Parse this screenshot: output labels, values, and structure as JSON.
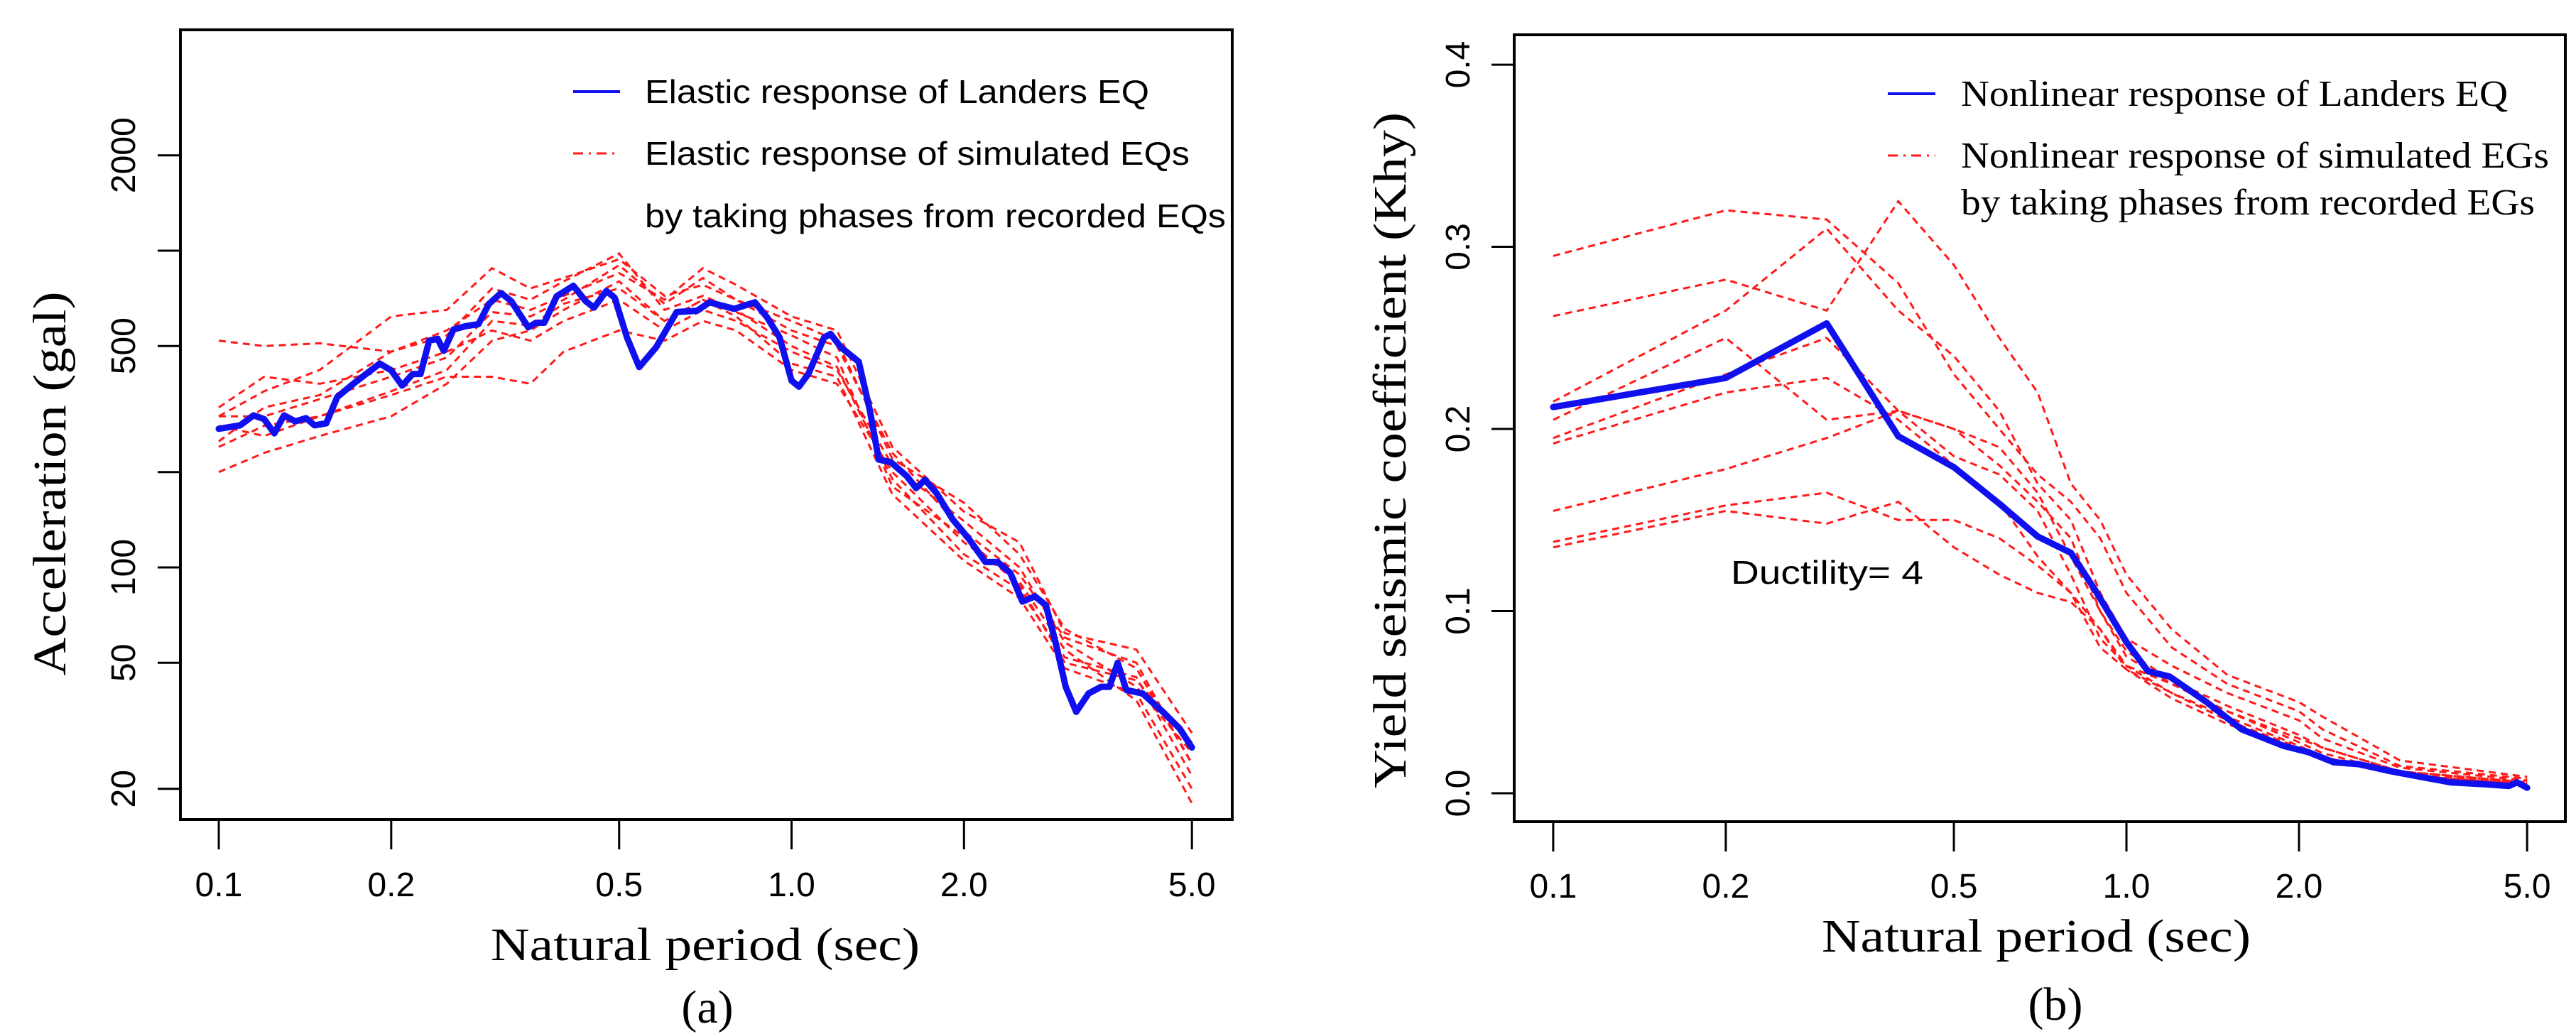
{
  "colors": {
    "landers": "#1010ee",
    "simulated": "#ff1a1a",
    "axis": "#000000"
  },
  "chart_data": [
    {
      "type": "line",
      "panel_label": "(a)",
      "xlabel": "Natural period (sec)",
      "ylabel": "Acceleration (gal)",
      "xscale": "log",
      "yscale": "log",
      "xlim": [
        0.0857,
        5.88
      ],
      "ylim": [
        16,
        4980
      ],
      "x_ticks": [
        0.1,
        0.2,
        0.5,
        1.0,
        2.0,
        5.0
      ],
      "x_tick_labels": [
        "0.1",
        "0.2",
        "0.5",
        "1.0",
        "2.0",
        "5.0"
      ],
      "y_ticks": [
        20,
        50,
        100,
        200,
        500,
        1000,
        2000
      ],
      "y_tick_labels": [
        "20",
        "50",
        "100",
        "",
        "500",
        "",
        "2000"
      ],
      "legend_position": "top-right",
      "legend": [
        "Elastic response of Landers EQ",
        "Elastic response of simulated EQs",
        "by taking phases from recorded EQs"
      ],
      "annotation": "",
      "main_series": {
        "name": "Elastic response of Landers EQ",
        "points": [
          [
            0.1,
            274
          ],
          [
            0.109,
            281
          ],
          [
            0.115,
            302
          ],
          [
            0.12,
            294
          ],
          [
            0.125,
            265
          ],
          [
            0.13,
            302
          ],
          [
            0.136,
            289
          ],
          [
            0.142,
            296
          ],
          [
            0.147,
            281
          ],
          [
            0.154,
            285
          ],
          [
            0.161,
            345
          ],
          [
            0.173,
            384
          ],
          [
            0.191,
            440
          ],
          [
            0.2,
            419
          ],
          [
            0.209,
            375
          ],
          [
            0.218,
            408
          ],
          [
            0.225,
            408
          ],
          [
            0.233,
            520
          ],
          [
            0.241,
            527
          ],
          [
            0.247,
            483
          ],
          [
            0.257,
            564
          ],
          [
            0.27,
            578
          ],
          [
            0.284,
            586
          ],
          [
            0.296,
            678
          ],
          [
            0.311,
            735
          ],
          [
            0.324,
            693
          ],
          [
            0.347,
            573
          ],
          [
            0.358,
            592
          ],
          [
            0.37,
            592
          ],
          [
            0.389,
            718
          ],
          [
            0.416,
            775
          ],
          [
            0.437,
            693
          ],
          [
            0.452,
            661
          ],
          [
            0.475,
            746
          ],
          [
            0.491,
            711
          ],
          [
            0.516,
            532
          ],
          [
            0.542,
            429
          ],
          [
            0.58,
            495
          ],
          [
            0.63,
            640
          ],
          [
            0.684,
            646
          ],
          [
            0.719,
            687
          ],
          [
            0.794,
            655
          ],
          [
            0.863,
            687
          ],
          [
            0.907,
            615
          ],
          [
            0.953,
            532
          ],
          [
            1.0,
            389
          ],
          [
            1.03,
            372
          ],
          [
            1.07,
            408
          ],
          [
            1.14,
            532
          ],
          [
            1.17,
            546
          ],
          [
            1.22,
            495
          ],
          [
            1.31,
            446
          ],
          [
            1.37,
            313
          ],
          [
            1.42,
            219
          ],
          [
            1.49,
            215
          ],
          [
            1.59,
            194
          ],
          [
            1.65,
            178
          ],
          [
            1.71,
            189
          ],
          [
            1.79,
            172
          ],
          [
            1.91,
            142
          ],
          [
            2.04,
            123
          ],
          [
            2.18,
            104
          ],
          [
            2.29,
            104
          ],
          [
            2.41,
            96
          ],
          [
            2.53,
            78
          ],
          [
            2.66,
            81
          ],
          [
            2.78,
            76
          ],
          [
            2.89,
            58
          ],
          [
            3.01,
            42
          ],
          [
            3.14,
            35
          ],
          [
            3.3,
            40
          ],
          [
            3.47,
            42
          ],
          [
            3.59,
            42
          ],
          [
            3.71,
            50
          ],
          [
            3.84,
            41
          ],
          [
            4.1,
            40
          ],
          [
            4.45,
            35
          ],
          [
            4.76,
            31
          ],
          [
            5.0,
            27
          ]
        ]
      },
      "sim_x": [
        0.1,
        0.12,
        0.15,
        0.2,
        0.25,
        0.3,
        0.35,
        0.4,
        0.5,
        0.6,
        0.7,
        0.8,
        1.0,
        1.2,
        1.5,
        2.0,
        2.5,
        3.0,
        4.0,
        5.0
      ],
      "sim_series": [
        [
          520,
          500,
          510,
          480,
          560,
          700,
          650,
          720,
          850,
          700,
          880,
          780,
          620,
          560,
          240,
          150,
          120,
          62,
          55,
          30
        ],
        [
          300,
          360,
          420,
          620,
          650,
          880,
          760,
          820,
          940,
          720,
          780,
          700,
          560,
          500,
          230,
          130,
          95,
          60,
          50,
          24
        ],
        [
          250,
          320,
          350,
          480,
          540,
          760,
          700,
          800,
          980,
          650,
          720,
          650,
          500,
          430,
          190,
          110,
          85,
          52,
          45,
          22
        ],
        [
          200,
          230,
          260,
          300,
          380,
          520,
          560,
          650,
          800,
          600,
          700,
          620,
          440,
          400,
          170,
          105,
          80,
          48,
          40,
          20
        ],
        [
          280,
          260,
          300,
          350,
          400,
          400,
          380,
          480,
          560,
          520,
          600,
          560,
          420,
          380,
          200,
          120,
          90,
          55,
          38,
          18
        ],
        [
          320,
          400,
          380,
          420,
          480,
          560,
          520,
          600,
          700,
          560,
          650,
          600,
          480,
          420,
          210,
          140,
          100,
          58,
          42,
          26
        ],
        [
          240,
          280,
          300,
          360,
          420,
          600,
          580,
          680,
          760,
          600,
          700,
          640,
          540,
          460,
          180,
          125,
          88,
          50,
          44,
          28
        ],
        [
          300,
          300,
          340,
          400,
          460,
          640,
          620,
          700,
          900,
          680,
          820,
          700,
          600,
          520,
          220,
          160,
          110,
          64,
          48,
          24
        ]
      ]
    },
    {
      "type": "line",
      "panel_label": "(b)",
      "xlabel": "Natural period (sec)",
      "ylabel": "Yield seismic coefficient (Khy)",
      "xscale": "log",
      "yscale": "linear",
      "xlim": [
        0.0855,
        5.83
      ],
      "ylim": [
        -0.0156,
        0.4164
      ],
      "x_ticks": [
        0.1,
        0.2,
        0.5,
        1.0,
        2.0,
        5.0
      ],
      "x_tick_labels": [
        "0.1",
        "0.2",
        "0.5",
        "1.0",
        "2.0",
        "5.0"
      ],
      "y_ticks": [
        0.0,
        0.1,
        0.2,
        0.3,
        0.4
      ],
      "y_tick_labels": [
        "0.0",
        "0.1",
        "0.2",
        "0.3",
        "0.4"
      ],
      "legend_position": "top-right",
      "legend": [
        "Nonlinear response of Landers EQ",
        "Nonlinear response of simulated EGs",
        "by taking phases from recorded EGs"
      ],
      "annotation": "Ductility= 4",
      "main_series": {
        "name": "Nonlinear response of Landers EQ",
        "points": [
          [
            0.1,
            0.212
          ],
          [
            0.2,
            0.228
          ],
          [
            0.3,
            0.258
          ],
          [
            0.4,
            0.196
          ],
          [
            0.5,
            0.179
          ],
          [
            0.6,
            0.159
          ],
          [
            0.7,
            0.141
          ],
          [
            0.8,
            0.132
          ],
          [
            0.88,
            0.112
          ],
          [
            1.0,
            0.083
          ],
          [
            1.09,
            0.067
          ],
          [
            1.19,
            0.064
          ],
          [
            1.38,
            0.05
          ],
          [
            1.59,
            0.035
          ],
          [
            1.88,
            0.026
          ],
          [
            2.08,
            0.0225
          ],
          [
            2.3,
            0.017
          ],
          [
            2.54,
            0.016
          ],
          [
            2.9,
            0.012
          ],
          [
            3.67,
            0.006
          ],
          [
            4.2,
            0.005
          ],
          [
            4.65,
            0.004
          ],
          [
            4.8,
            0.006
          ],
          [
            5.0,
            0.003
          ]
        ]
      },
      "sim_x": [
        0.1,
        0.2,
        0.3,
        0.4,
        0.5,
        0.6,
        0.7,
        0.8,
        0.9,
        1.0,
        1.2,
        1.5,
        2.0,
        2.2,
        3.0,
        5.0
      ],
      "sim_series": [
        [
          0.295,
          0.32,
          0.315,
          0.28,
          0.23,
          0.2,
          0.175,
          0.16,
          0.14,
          0.11,
          0.08,
          0.06,
          0.045,
          0.035,
          0.015,
          0.008
        ],
        [
          0.262,
          0.282,
          0.265,
          0.325,
          0.29,
          0.25,
          0.22,
          0.17,
          0.15,
          0.12,
          0.09,
          0.065,
          0.05,
          0.042,
          0.018,
          0.009
        ],
        [
          0.215,
          0.265,
          0.31,
          0.265,
          0.24,
          0.21,
          0.17,
          0.15,
          0.11,
          0.085,
          0.07,
          0.055,
          0.04,
          0.03,
          0.014,
          0.007
        ],
        [
          0.205,
          0.25,
          0.205,
          0.21,
          0.2,
          0.18,
          0.16,
          0.14,
          0.1,
          0.075,
          0.06,
          0.045,
          0.03,
          0.025,
          0.012,
          0.006
        ],
        [
          0.195,
          0.23,
          0.25,
          0.21,
          0.185,
          0.175,
          0.155,
          0.12,
          0.085,
          0.07,
          0.06,
          0.045,
          0.028,
          0.022,
          0.011,
          0.005
        ],
        [
          0.192,
          0.22,
          0.228,
          0.205,
          0.18,
          0.16,
          0.13,
          0.11,
          0.08,
          0.068,
          0.055,
          0.04,
          0.025,
          0.02,
          0.01,
          0.005
        ],
        [
          0.155,
          0.178,
          0.195,
          0.21,
          0.2,
          0.19,
          0.165,
          0.13,
          0.1,
          0.078,
          0.062,
          0.048,
          0.032,
          0.025,
          0.012,
          0.006
        ],
        [
          0.138,
          0.158,
          0.165,
          0.15,
          0.15,
          0.14,
          0.125,
          0.11,
          0.09,
          0.07,
          0.055,
          0.042,
          0.026,
          0.02,
          0.01,
          0.005
        ],
        [
          0.135,
          0.155,
          0.148,
          0.16,
          0.135,
          0.12,
          0.11,
          0.105,
          0.09,
          0.068,
          0.052,
          0.038,
          0.024,
          0.019,
          0.01,
          0.005
        ]
      ]
    }
  ]
}
